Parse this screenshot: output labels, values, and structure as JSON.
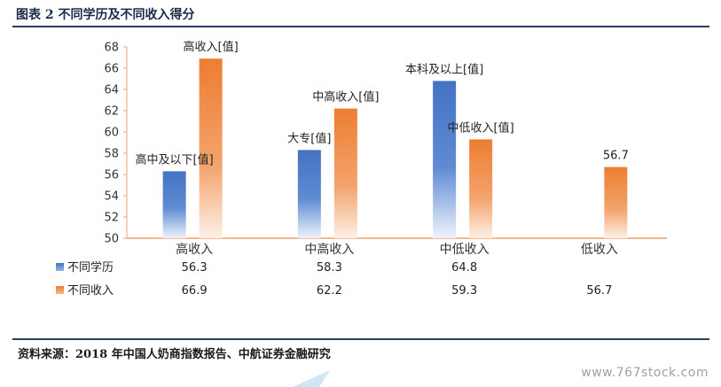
{
  "header": {
    "title": "图表 2 不同学历及不同收入得分"
  },
  "footer": {
    "source": "资料来源：2018 年中国人奶商指数报告、中航证券金融研究",
    "watermark": "www.767stock.com"
  },
  "chart_data": {
    "type": "bar",
    "categories": [
      "高收入",
      "中高收入",
      "中低收入",
      "低收入"
    ],
    "ylim": [
      50,
      68
    ],
    "yticks": [
      50,
      52,
      54,
      56,
      58,
      60,
      62,
      64,
      66,
      68
    ],
    "grid": false,
    "legend_placement": "table-below",
    "colors": {
      "不同学历": "#4472c4",
      "不同收入": "#ed7d31"
    },
    "series": [
      {
        "name": "不同学历",
        "values": [
          56.3,
          58.3,
          64.8,
          null
        ],
        "labels": [
          "高中及以下[值]",
          "大专[值]",
          "本科及以上[值]",
          ""
        ],
        "table": [
          "56.3",
          "58.3",
          "64.8",
          ""
        ]
      },
      {
        "name": "不同收入",
        "values": [
          66.9,
          62.2,
          59.3,
          56.7
        ],
        "labels": [
          "高收入[值]",
          "中高收入[值]",
          "中低收入[值]",
          "56.7"
        ],
        "table": [
          "66.9",
          "62.2",
          "59.3",
          "56.7"
        ]
      }
    ]
  }
}
